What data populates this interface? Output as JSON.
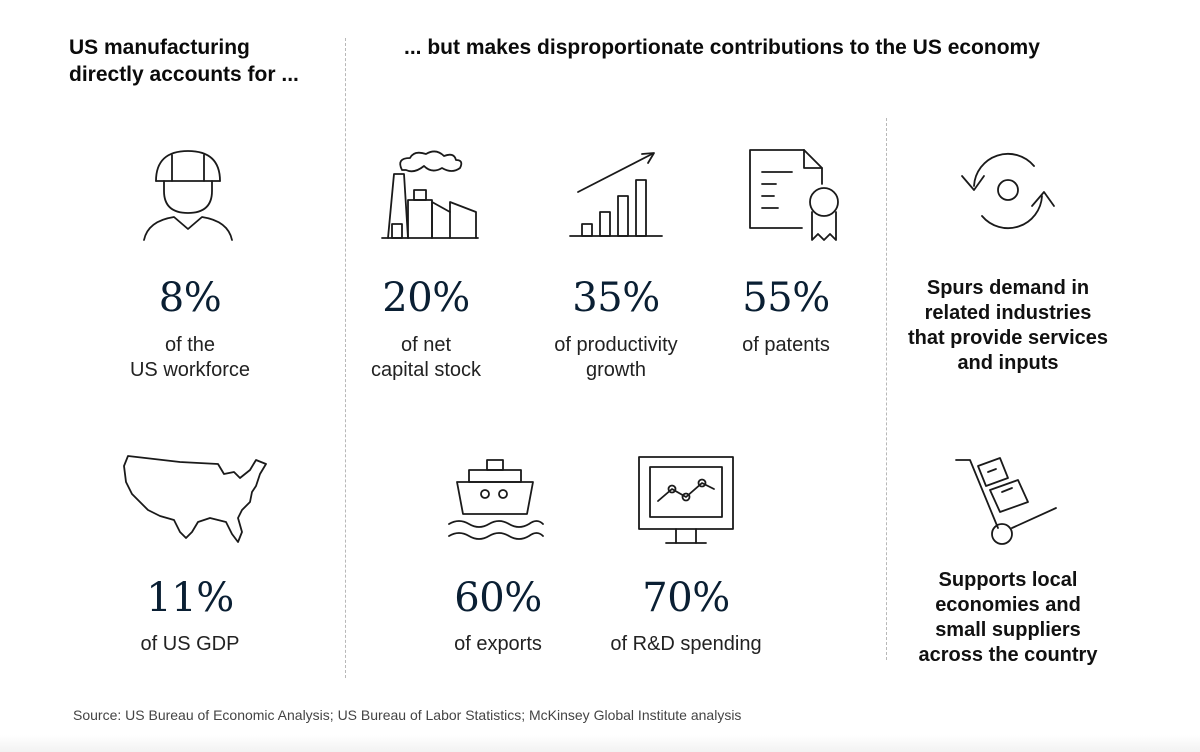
{
  "left_heading": "US manufacturing\ndirectly accounts for ...",
  "right_heading": "... but makes disproportionate contributions to the US economy",
  "stats": {
    "workforce": {
      "value": "8%",
      "caption": "of the\nUS workforce",
      "icon": "hard-hat-worker-icon"
    },
    "gdp": {
      "value": "11%",
      "caption": "of US GDP",
      "icon": "us-map-icon"
    },
    "capital_stock": {
      "value": "20%",
      "caption": "of net\ncapital stock",
      "icon": "factory-icon"
    },
    "productivity": {
      "value": "35%",
      "caption": "of productivity\ngrowth",
      "icon": "bar-chart-growth-icon"
    },
    "patents": {
      "value": "55%",
      "caption": "of patents",
      "icon": "certificate-icon"
    },
    "exports": {
      "value": "60%",
      "caption": "of exports",
      "icon": "cargo-ship-icon"
    },
    "rd_spending": {
      "value": "70%",
      "caption": "of R&D spending",
      "icon": "monitor-chart-icon"
    }
  },
  "side_notes": {
    "demand": {
      "text": "Spurs demand in\nrelated industries\nthat provide services\nand inputs",
      "icon": "cycle-arrows-icon"
    },
    "suppliers": {
      "text": "Supports local\neconomies and\nsmall suppliers\nacross the country",
      "icon": "hand-truck-icon"
    }
  },
  "source": "Source: US Bureau of Economic Analysis; US Bureau of Labor Statistics; McKinsey Global Institute analysis"
}
